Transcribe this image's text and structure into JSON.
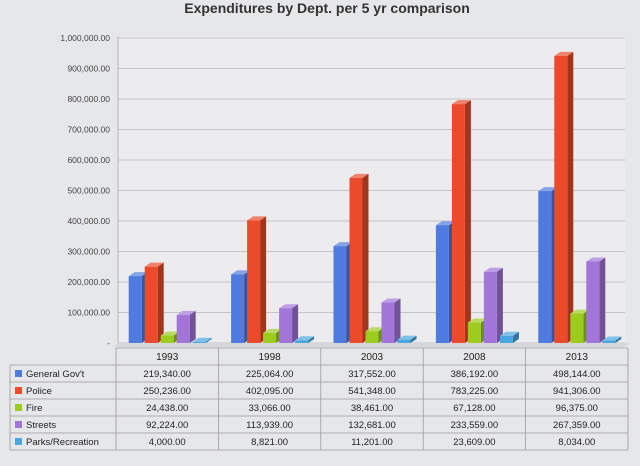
{
  "chart_data": {
    "type": "bar",
    "title": "Expenditures by Dept. per 5 yr comparison",
    "categories": [
      "1993",
      "1998",
      "2003",
      "2008",
      "2013"
    ],
    "ylim": [
      0,
      1000000
    ],
    "yticks": [
      "1,000,000.00",
      "900,000.00",
      "800,000.00",
      "700,000.00",
      "600,000.00",
      "500,000.00",
      "400,000.00",
      "300,000.00",
      "200,000.00",
      "100,000.00",
      "-"
    ],
    "yticks_values": [
      1000000,
      900000,
      800000,
      700000,
      600000,
      500000,
      400000,
      300000,
      200000,
      100000,
      0
    ],
    "grid": true,
    "legend_placement": "table-below",
    "series": [
      {
        "name": "General Gov't",
        "color": "#4f7be0",
        "values": [
          219340,
          225064,
          317552,
          386192,
          498144
        ],
        "labels": [
          "219,340.00",
          "225,064.00",
          "317,552.00",
          "386,192.00",
          "498,144.00"
        ]
      },
      {
        "name": "Police",
        "color": "#ea4b2a",
        "values": [
          250236,
          402095,
          541348,
          783225,
          941306
        ],
        "labels": [
          "250,236.00",
          "402,095.00",
          "541,348.00",
          "783,225.00",
          "941,306.00"
        ]
      },
      {
        "name": "Fire",
        "color": "#9ccc1e",
        "values": [
          24438,
          33066,
          38461,
          67128,
          96375
        ],
        "labels": [
          "24,438.00",
          "33,066.00",
          "38,461.00",
          "67,128.00",
          "96,375.00"
        ]
      },
      {
        "name": "Streets",
        "color": "#a275d8",
        "values": [
          92224,
          113939,
          132681,
          233559,
          267359
        ],
        "labels": [
          "92,224.00",
          "113,939.00",
          "132,681.00",
          "233,559.00",
          "267,359.00"
        ]
      },
      {
        "name": "Parks/Recreation",
        "color": "#4aa6e0",
        "values": [
          4000,
          8821,
          11201,
          23609,
          8034
        ],
        "labels": [
          "4,000.00",
          "8,821.00",
          "11,201.00",
          "23,609.00",
          "8,034.00"
        ]
      }
    ]
  }
}
